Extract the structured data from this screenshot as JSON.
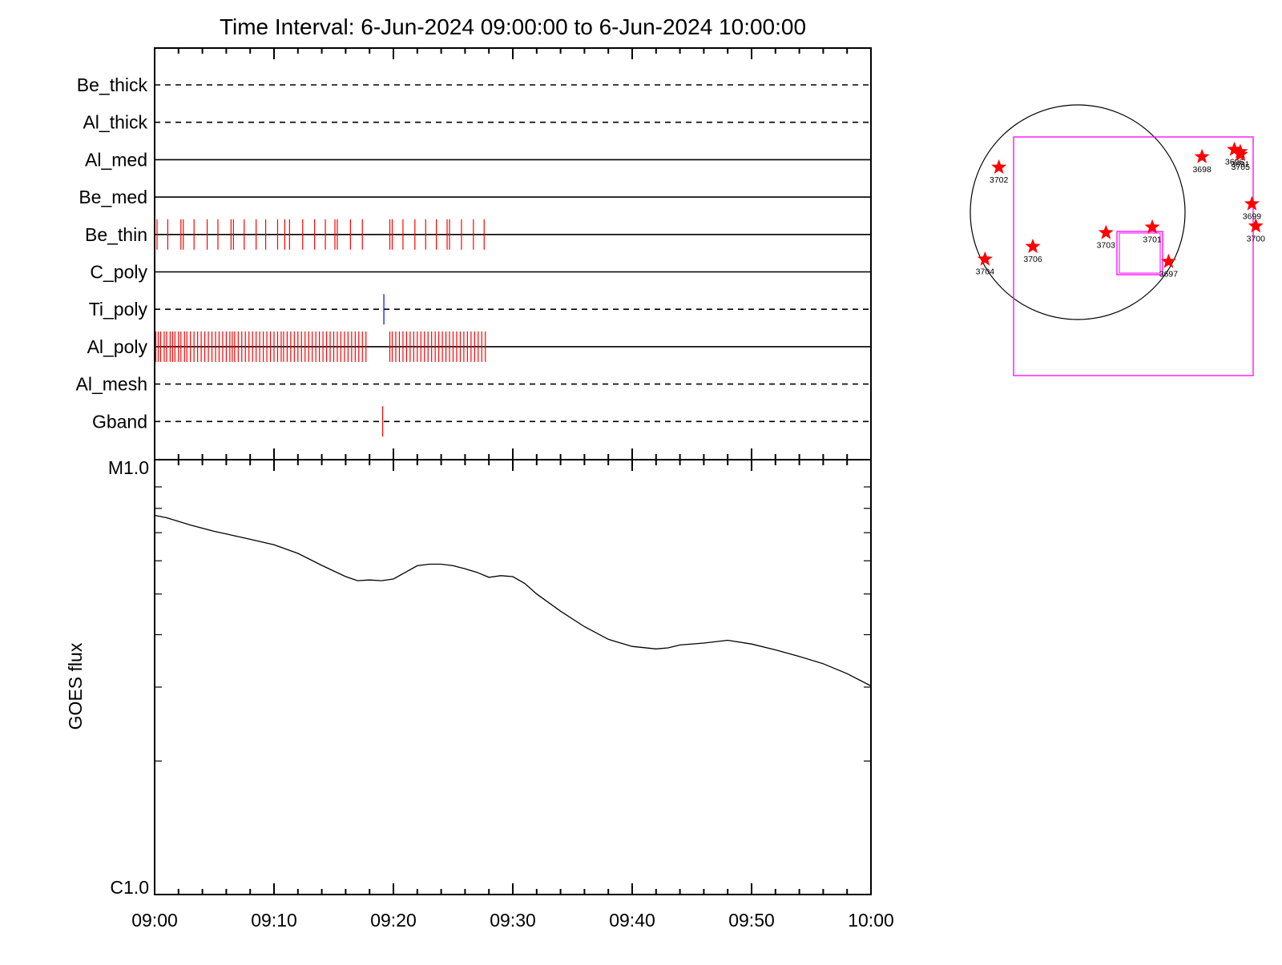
{
  "chart_data": [
    {
      "type": "timeline",
      "title": "Time Interval:  6-Jun-2024 09:00:00 to  6-Jun-2024 10:00:00",
      "x_unit": "minutes after 09:00",
      "xlim": [
        0,
        60
      ],
      "channels": [
        {
          "name": "Be_thick",
          "style": "dashed",
          "events": [],
          "event_color": "#ff0000"
        },
        {
          "name": "Al_thick",
          "style": "dashed",
          "events": [],
          "event_color": "#ff0000"
        },
        {
          "name": "Al_med",
          "style": "solid",
          "events": [],
          "event_color": "#ff0000"
        },
        {
          "name": "Be_med",
          "style": "solid",
          "events": [],
          "event_color": "#ff0000"
        },
        {
          "name": "Be_thin",
          "style": "solid",
          "event_color": "#ff0000",
          "events": [
            0.2,
            1.1,
            2.2,
            2.4,
            3.3,
            4.4,
            5.3,
            6.4,
            6.6,
            7.5,
            8.5,
            9.3,
            10.3,
            10.9,
            11.3,
            12.4,
            13.4,
            14.3,
            15.1,
            15.3,
            16.4,
            17.4,
            19.7,
            19.9,
            20.8,
            21.8,
            22.7,
            23.6,
            24.5,
            24.7,
            25.7,
            26.7,
            27.6
          ]
        },
        {
          "name": "C_poly",
          "style": "solid",
          "events": [],
          "event_color": "#ff0000"
        },
        {
          "name": "Ti_poly",
          "style": "dashed",
          "events": [
            19.2
          ],
          "event_color": "#0000ff"
        },
        {
          "name": "Al_poly",
          "style": "solid",
          "event_color": "#ff0000",
          "events": [
            0.1,
            0.3,
            0.5,
            0.8,
            1.0,
            1.3,
            1.5,
            1.7,
            2.0,
            2.2,
            2.5,
            2.7,
            3.0,
            3.3,
            3.6,
            3.9,
            4.2,
            4.5,
            4.8,
            5.1,
            5.4,
            5.7,
            6.0,
            6.3,
            6.5,
            6.7,
            7.0,
            7.3,
            7.6,
            7.9,
            8.2,
            8.5,
            8.8,
            9.1,
            9.4,
            9.7,
            10.0,
            10.3,
            10.6,
            10.8,
            11.1,
            11.4,
            11.7,
            12.0,
            12.3,
            12.6,
            12.9,
            13.2,
            13.5,
            13.8,
            14.1,
            14.4,
            14.7,
            15.0,
            15.3,
            15.6,
            15.9,
            16.2,
            16.5,
            16.8,
            17.1,
            17.4,
            17.7,
            19.7,
            19.9,
            20.2,
            20.5,
            20.8,
            21.1,
            21.4,
            21.7,
            22.0,
            22.3,
            22.6,
            22.9,
            23.2,
            23.5,
            23.8,
            24.1,
            24.4,
            24.7,
            25.0,
            25.3,
            25.6,
            25.9,
            26.2,
            26.5,
            26.8,
            27.1,
            27.4,
            27.7
          ]
        },
        {
          "name": "Al_mesh",
          "style": "dashed",
          "events": [],
          "event_color": "#ff0000"
        },
        {
          "name": "Gband",
          "style": "dashed",
          "events": [
            19.1
          ],
          "event_color": "#ff0000"
        }
      ]
    },
    {
      "type": "line",
      "ylabel": "GOES flux",
      "yscale": "log",
      "ylim": [
        1e-06,
        1e-05
      ],
      "ytick_labels": [
        {
          "value": 1e-05,
          "label": "M1.0"
        },
        {
          "value": 1e-06,
          "label": "C1.0"
        }
      ],
      "xlim": [
        0,
        60
      ],
      "xtick_labels": [
        "09:00",
        "09:10",
        "09:20",
        "09:30",
        "09:40",
        "09:50",
        "10:00"
      ],
      "line_color": "#000000",
      "series": [
        {
          "x": [
            0,
            1,
            3,
            5,
            6,
            8,
            10,
            12,
            14,
            16,
            17,
            18,
            19,
            20,
            21,
            22,
            23,
            24,
            25,
            26,
            27,
            28,
            29,
            30,
            31,
            32,
            34,
            36,
            38,
            40,
            42,
            43,
            44,
            46,
            48,
            50,
            52,
            54,
            56,
            58,
            60
          ],
          "y": [
            7.7e-06,
            7.6e-06,
            7.3e-06,
            7.05e-06,
            6.95e-06,
            6.75e-06,
            6.55e-06,
            6.25e-06,
            5.85e-06,
            5.5e-06,
            5.38e-06,
            5.4e-06,
            5.38e-06,
            5.43e-06,
            5.63e-06,
            5.84e-06,
            5.89e-06,
            5.89e-06,
            5.84e-06,
            5.74e-06,
            5.63e-06,
            5.48e-06,
            5.53e-06,
            5.5e-06,
            5.3e-06,
            5e-06,
            4.55e-06,
            4.18e-06,
            3.9e-06,
            3.75e-06,
            3.7e-06,
            3.72e-06,
            3.78e-06,
            3.82e-06,
            3.88e-06,
            3.8e-06,
            3.68e-06,
            3.55e-06,
            3.41e-06,
            3.23e-06,
            3.02e-06
          ]
        }
      ]
    },
    {
      "type": "scatter",
      "frame_color": "#ff00ff",
      "marker_color": "#ff0000",
      "points": [
        {
          "label": "3702",
          "x": -710,
          "y": 405
        },
        {
          "label": "3698",
          "x": 1120,
          "y": 500
        },
        {
          "label": "3696",
          "x": 1412,
          "y": 565
        },
        {
          "label": "3691",
          "x": 1465,
          "y": 545
        },
        {
          "label": "3705",
          "x": 1468,
          "y": 520
        },
        {
          "label": "3699",
          "x": 1570,
          "y": 75
        },
        {
          "label": "3700",
          "x": 1605,
          "y": -125
        },
        {
          "label": "3701",
          "x": 672,
          "y": -135
        },
        {
          "label": "3703",
          "x": 255,
          "y": -185
        },
        {
          "label": "3706",
          "x": -404,
          "y": -310
        },
        {
          "label": "3704",
          "x": -835,
          "y": -424
        },
        {
          "label": "3697",
          "x": 819,
          "y": -445
        }
      ]
    }
  ]
}
